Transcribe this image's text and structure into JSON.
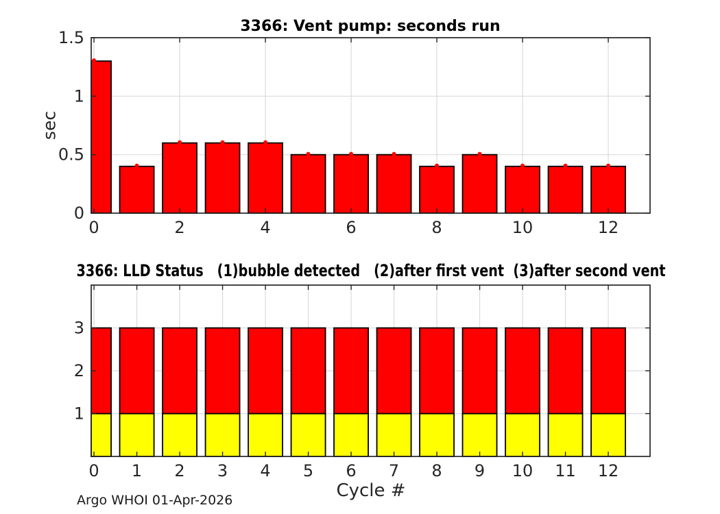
{
  "chart_data": [
    {
      "type": "bar",
      "title": "3366: Vent pump: seconds run",
      "ylabel": "sec",
      "categories": [
        0,
        1,
        2,
        3,
        4,
        5,
        6,
        7,
        8,
        9,
        10,
        11,
        12
      ],
      "values": [
        1.3,
        0.4,
        0.6,
        0.6,
        0.6,
        0.5,
        0.5,
        0.5,
        0.4,
        0.5,
        0.4,
        0.4,
        0.4
      ],
      "bar_color": "#ff0000",
      "bar_edge_color": "#000000",
      "marker": {
        "shape": "dot",
        "color": "#ff0000"
      },
      "bar_width": 0.8,
      "xlim": [
        -0.065,
        12.975
      ],
      "ylim": [
        0,
        1.5
      ],
      "xticks": [
        0,
        2,
        4,
        6,
        8,
        10,
        12
      ],
      "xtick_labels": [
        "0",
        "2",
        "4",
        "6",
        "8",
        "10",
        "12"
      ],
      "yticks": [
        0,
        0.5,
        1,
        1.5
      ],
      "ytick_labels": [
        "0",
        "0.5",
        "1",
        "1.5"
      ],
      "grid": true,
      "legend": "none"
    },
    {
      "type": "stacked-bar",
      "title": "3366: LLD Status   (1)bubble detected   (2)after first vent  (3)after second vent",
      "xlabel": "Cycle #",
      "categories": [
        0,
        1,
        2,
        3,
        4,
        5,
        6,
        7,
        8,
        9,
        10,
        11,
        12
      ],
      "series": [
        {
          "name": "bubble detected",
          "color": "#ffff00",
          "values": [
            1,
            1,
            1,
            1,
            1,
            1,
            1,
            1,
            1,
            1,
            1,
            1,
            1
          ]
        },
        {
          "name": "after first/second vent",
          "color": "#ff0000",
          "values": [
            2,
            2,
            2,
            2,
            2,
            2,
            2,
            2,
            2,
            2,
            2,
            2,
            2
          ]
        }
      ],
      "bar_edge_color": "#000000",
      "bar_width": 0.8,
      "xlim": [
        -0.065,
        12.975
      ],
      "ylim": [
        0,
        4
      ],
      "xticks": [
        0,
        1,
        2,
        3,
        4,
        5,
        6,
        7,
        8,
        9,
        10,
        11,
        12
      ],
      "xtick_labels": [
        "0",
        "1",
        "2",
        "3",
        "4",
        "5",
        "6",
        "7",
        "8",
        "9",
        "10",
        "11",
        "12"
      ],
      "yticks": [
        1,
        2,
        3
      ],
      "ytick_labels": [
        "1",
        "2",
        "3"
      ],
      "grid": true,
      "legend": "none"
    }
  ],
  "footer": {
    "text": "Argo WHOI 01-Apr-2026"
  },
  "colors": {
    "grid": "#dbdbdb",
    "axis": "#262626",
    "text": "#262626",
    "title": "#000000",
    "background": "#ffffff"
  }
}
